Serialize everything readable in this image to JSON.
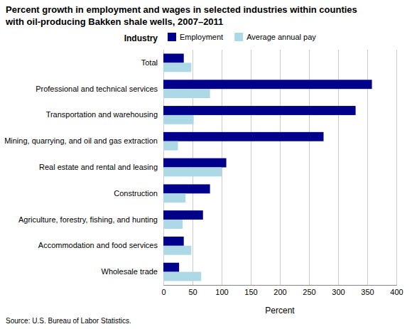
{
  "chart_data": {
    "type": "bar",
    "orientation": "horizontal",
    "title": [
      "Percent growth in employment and wages in selected industries within counties",
      "with oil-producing Bakken shale wells, 2007–2011"
    ],
    "categories": [
      "Wholesale trade",
      "Accommodation and food services",
      "Agriculture, forestry, fishing, and hunting",
      "Construction",
      "Real estate and rental and leasing",
      "Mining, quarrying, and oil and gas extraction",
      "Transportation and warehousing",
      "Professional and technical services",
      "Total"
    ],
    "series": [
      {
        "name": "Employment",
        "color": "#00008B",
        "values": [
          27,
          35,
          68,
          80,
          108,
          275,
          330,
          358,
          35
        ]
      },
      {
        "name": "Average annual pay",
        "color": "#ADD8E6",
        "values": [
          65,
          48,
          33,
          38,
          100,
          25,
          52,
          80,
          48
        ]
      }
    ],
    "xlabel": "Percent",
    "ylabel": "Industry",
    "xlim": [
      0,
      400
    ],
    "xticks": [
      0,
      50,
      100,
      150,
      200,
      250,
      300,
      350,
      400
    ],
    "grid": true,
    "legend": "top",
    "source": "Source: U.S. Bureau of Labor Statistics."
  }
}
